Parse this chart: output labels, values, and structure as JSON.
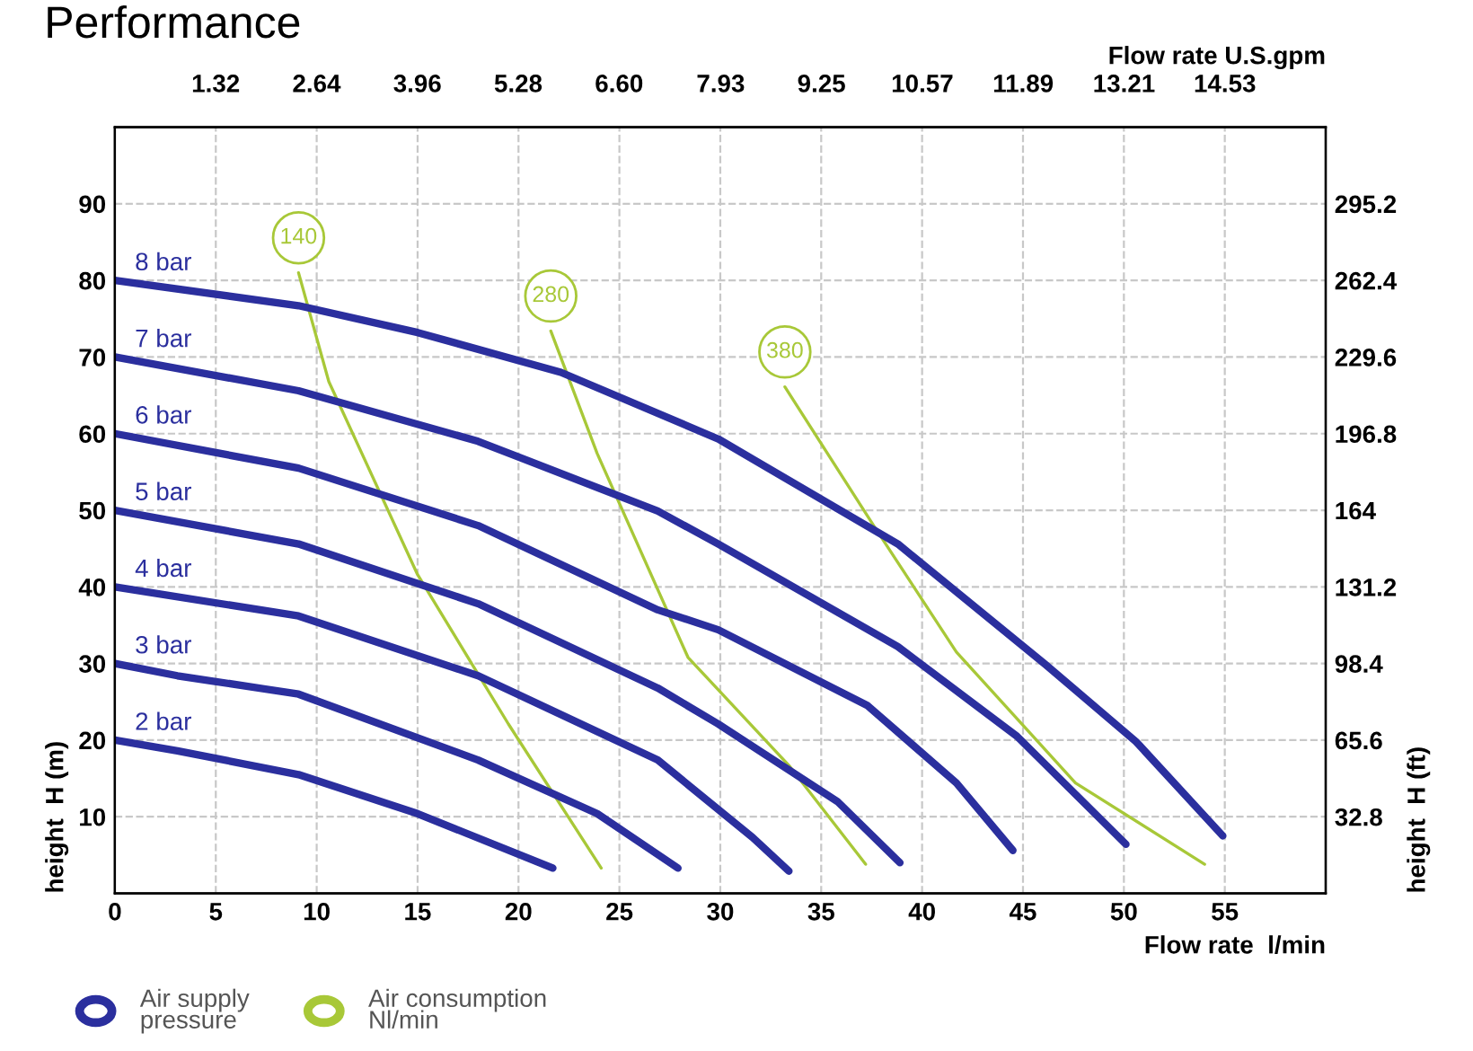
{
  "chart_data": {
    "type": "line",
    "title": "Performance",
    "xlabel": "Flow rate  l/min",
    "x2label": "Flow rate U.S.gpm",
    "ylabel": "height  H (m)",
    "y2label": "height  H (ft)",
    "xlim": [
      0,
      60
    ],
    "xticks": [
      0,
      5,
      10,
      15,
      20,
      25,
      30,
      35,
      40,
      45,
      50,
      55
    ],
    "ylim": [
      0,
      100
    ],
    "yticks": [
      10,
      20,
      30,
      40,
      50,
      60,
      70,
      80,
      90
    ],
    "x2lim": [
      0,
      15.85
    ],
    "x2ticks": [
      1.32,
      2.64,
      3.96,
      5.28,
      {
        "value": 6.6,
        "label": "6.60"
      },
      7.93,
      9.25,
      10.57,
      11.89,
      13.21,
      14.53
    ],
    "y2lim": [
      0,
      328
    ],
    "y2ticks": [
      32.8,
      65.6,
      98.4,
      131.2,
      164,
      196.8,
      229.6,
      262.4,
      295.2
    ],
    "grid": true,
    "marker": "none",
    "line_style": "solid",
    "annotations": [
      "Air supply\npressure",
      "Air consumption\nNl/min"
    ],
    "series": [
      {
        "name": "8 bar",
        "color": "#2b2f9e",
        "x": [
          0,
          9.1,
          15,
          22.1,
          29.9,
          38.8,
          46.1,
          50.6,
          54.9
        ],
        "values": [
          80,
          76.7,
          73.2,
          68,
          59.3,
          45.6,
          29.9,
          19.8,
          7.5
        ]
      },
      {
        "name": "7 bar",
        "color": "#2b2f9e",
        "x": [
          0,
          9.1,
          18,
          26.9,
          29.9,
          38.8,
          44.7,
          50.1
        ],
        "values": [
          70,
          65.6,
          59,
          49.9,
          45.6,
          32.2,
          20.5,
          6.4
        ]
      },
      {
        "name": "6 bar",
        "color": "#2b2f9e",
        "x": [
          0,
          9.1,
          18,
          26.9,
          29.9,
          37.3,
          41.7,
          44.5
        ],
        "values": [
          60,
          55.5,
          48,
          37,
          34.4,
          24.5,
          14.4,
          5.6
        ]
      },
      {
        "name": "5 bar",
        "color": "#2b2f9e",
        "x": [
          0,
          9.1,
          18,
          26.9,
          29.9,
          35.8,
          38.9
        ],
        "values": [
          50,
          45.6,
          37.8,
          26.8,
          22.1,
          12,
          4
        ]
      },
      {
        "name": "4 bar",
        "color": "#2b2f9e",
        "x": [
          0,
          9.1,
          18,
          26.9,
          31.6,
          33.4
        ],
        "values": [
          40,
          36.2,
          28.4,
          17.4,
          7.3,
          2.9
        ]
      },
      {
        "name": "3 bar",
        "color": "#2b2f9e",
        "x": [
          0,
          3.1,
          9.1,
          18,
          23.9,
          27.9
        ],
        "values": [
          30,
          28.4,
          26,
          17.4,
          10.4,
          3.3
        ]
      },
      {
        "name": "2 bar",
        "color": "#2b2f9e",
        "x": [
          0,
          3.1,
          9.1,
          15,
          21.7
        ],
        "values": [
          20,
          18.6,
          15.5,
          10.4,
          3.3
        ]
      },
      {
        "name": "140",
        "color": "#a8c838",
        "x": [
          9.1,
          10.6,
          15,
          19.5,
          24.1
        ],
        "values": [
          81,
          66.8,
          41.6,
          22.1,
          3.3
        ]
      },
      {
        "name": "280",
        "color": "#a8c838",
        "x": [
          21.6,
          23.9,
          28.4,
          33.4,
          37.2
        ],
        "values": [
          73.4,
          57.4,
          30.8,
          16.7,
          3.8
        ]
      },
      {
        "name": "380",
        "color": "#a8c838",
        "x": [
          33.2,
          37.6,
          41.7,
          47.6,
          54
        ],
        "values": [
          66.1,
          48,
          31.5,
          14.4,
          3.8
        ]
      }
    ]
  }
}
